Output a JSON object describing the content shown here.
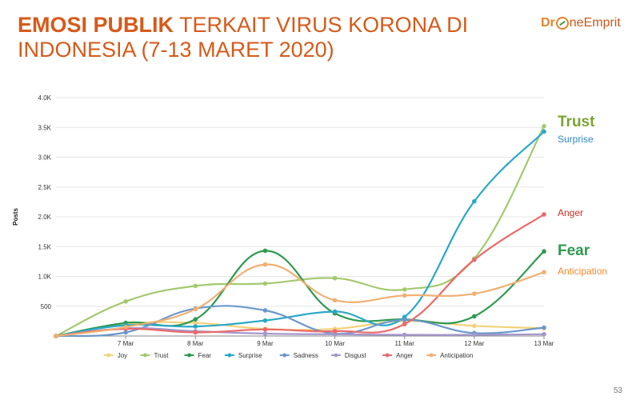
{
  "header": {
    "title_bold": "EMOSI PUBLIK",
    "title_rest": " TERKAIT VIRUS KORONA DI INDONESIA (7-13 MARET 2020)",
    "logo_a": "Dr",
    "logo_b": "neEmprit",
    "page_number": "53"
  },
  "annotations": [
    {
      "text": "Trust",
      "color": "#7aa332",
      "size": "large"
    },
    {
      "text": "Surprise",
      "color": "#2f88c6",
      "size": "small"
    },
    {
      "text": "Anger",
      "color": "#c8302a",
      "size": "small"
    },
    {
      "text": "Fear",
      "color": "#2e9a50",
      "size": "large"
    },
    {
      "text": "Anticipation",
      "color": "#ee8a2c",
      "size": "small"
    }
  ],
  "chart_data": {
    "type": "line",
    "ylabel": "Posts",
    "xlabel": "",
    "ylim": [
      0,
      4000
    ],
    "yticks": [
      0,
      500,
      1000,
      1500,
      2000,
      2500,
      3000,
      3500,
      4000
    ],
    "ytick_labels": [
      "",
      "500",
      "1.0K",
      "1.5K",
      "2.0K",
      "2.5K",
      "3.0K",
      "3.5K",
      "4.0K"
    ],
    "categories": [
      "",
      "7 Mar",
      "8 Mar",
      "9 Mar",
      "10 Mar",
      "11 Mar",
      "12 Mar",
      "13 Mar"
    ],
    "series": [
      {
        "name": "Joy",
        "color": "#f2d27a",
        "values": [
          0,
          200,
          220,
          120,
          120,
          250,
          170,
          130
        ]
      },
      {
        "name": "Trust",
        "color": "#a4c96e",
        "values": [
          0,
          580,
          840,
          880,
          970,
          780,
          1300,
          3520
        ]
      },
      {
        "name": "Fear",
        "color": "#2e9a50",
        "values": [
          0,
          220,
          280,
          1430,
          380,
          280,
          330,
          1420
        ]
      },
      {
        "name": "Surprise",
        "color": "#2aa8c8",
        "values": [
          0,
          180,
          160,
          260,
          410,
          320,
          2260,
          3430
        ]
      },
      {
        "name": "Sadness",
        "color": "#6a98cc",
        "values": [
          0,
          60,
          460,
          430,
          40,
          270,
          50,
          140
        ]
      },
      {
        "name": "Disgust",
        "color": "#a597cc",
        "values": [
          0,
          130,
          80,
          40,
          30,
          20,
          20,
          30
        ]
      },
      {
        "name": "Anger",
        "color": "#ea6a6a",
        "values": [
          0,
          120,
          60,
          110,
          80,
          200,
          1280,
          2040
        ]
      },
      {
        "name": "Anticipation",
        "color": "#f0b072",
        "values": [
          0,
          150,
          450,
          1200,
          600,
          680,
          710,
          1070
        ]
      }
    ]
  }
}
